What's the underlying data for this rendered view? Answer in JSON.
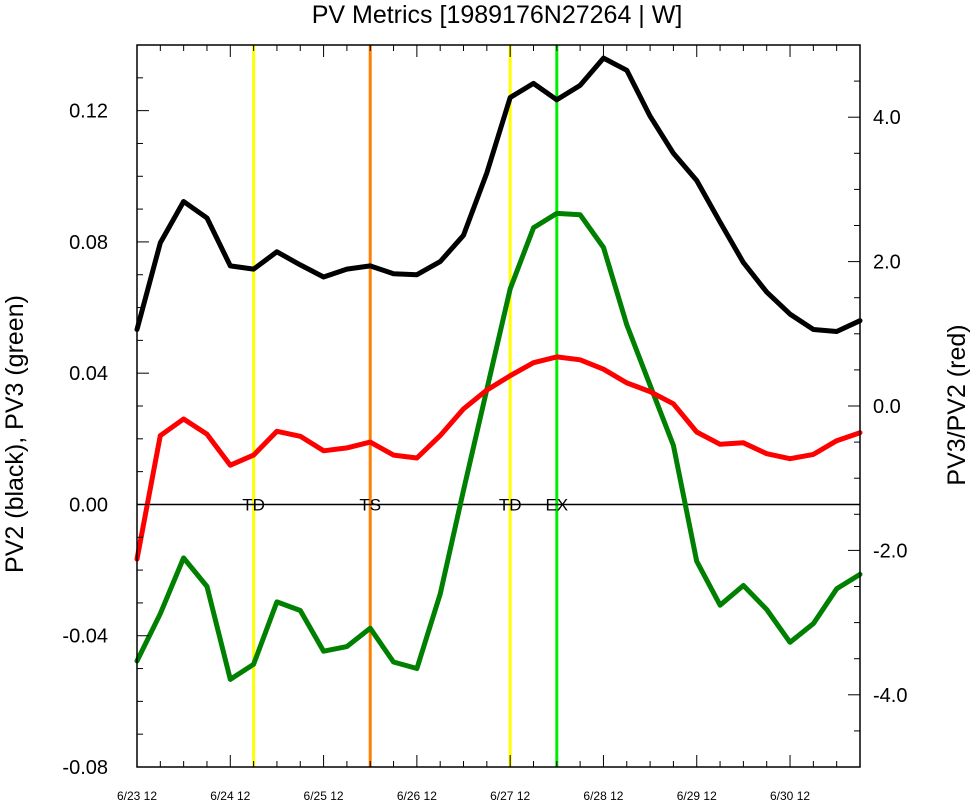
{
  "chart_data": {
    "type": "line",
    "title": "PV Metrics [1989176N27264 | W]",
    "ylabel_left": "PV2 (black), PV3 (green)",
    "ylabel_right": "PV3/PV2 (red)",
    "xlabel": "",
    "x_tick_labels": [
      "6/23 12",
      "6/24 12",
      "6/25 12",
      "6/26 12",
      "6/27 12",
      "6/28 12",
      "6/29 12",
      "6/30 12"
    ],
    "x_range_days": [
      0,
      7.75
    ],
    "ylim_left": [
      -0.08,
      0.14
    ],
    "y_ticks_left": [
      "-0.08",
      "-0.04",
      "0.00",
      "0.04",
      "0.08",
      "0.12"
    ],
    "y_tick_values_left": [
      -0.08,
      -0.04,
      0.0,
      0.04,
      0.08,
      0.12
    ],
    "ylim_right": [
      -5.0,
      5.0
    ],
    "y_ticks_right": [
      "-4.0",
      "-2.0",
      "0.0",
      "2.0",
      "4.0"
    ],
    "y_tick_values_right": [
      -4.0,
      -2.0,
      0.0,
      2.0,
      4.0
    ],
    "zero_line": 0.0,
    "x": [
      0,
      0.25,
      0.5,
      0.75,
      1.0,
      1.25,
      1.5,
      1.75,
      2.0,
      2.25,
      2.5,
      2.75,
      3.0,
      3.25,
      3.5,
      3.75,
      4.0,
      4.25,
      4.5,
      4.75,
      5.0,
      5.25,
      5.5,
      5.75,
      6.0,
      6.25,
      6.5,
      6.75,
      7.0,
      7.25,
      7.5,
      7.75
    ],
    "series": [
      {
        "name": "PV2",
        "axis": "left",
        "color": "#000000",
        "values": [
          0.0533,
          0.0797,
          0.0923,
          0.0873,
          0.0727,
          0.0717,
          0.077,
          0.073,
          0.0693,
          0.0717,
          0.0727,
          0.0703,
          0.07,
          0.074,
          0.082,
          0.101,
          0.124,
          0.1283,
          0.1233,
          0.1277,
          0.136,
          0.1323,
          0.1183,
          0.107,
          0.0987,
          0.086,
          0.0737,
          0.0647,
          0.058,
          0.0533,
          0.0527,
          0.056
        ]
      },
      {
        "name": "PV3",
        "axis": "left",
        "color": "#008000",
        "values": [
          -0.0477,
          -0.0333,
          -0.0163,
          -0.025,
          -0.0533,
          -0.0487,
          -0.0297,
          -0.0323,
          -0.0447,
          -0.0433,
          -0.0377,
          -0.048,
          -0.05,
          -0.0273,
          0.0043,
          0.035,
          0.0657,
          0.0843,
          0.0887,
          0.0883,
          0.0783,
          0.0547,
          0.0363,
          0.018,
          -0.0173,
          -0.0307,
          -0.0247,
          -0.032,
          -0.042,
          -0.0363,
          -0.0257,
          -0.0213
        ]
      },
      {
        "name": "PV3/PV2",
        "axis": "right",
        "color": "#ff0000",
        "values": [
          -2.12,
          -0.41,
          -0.18,
          -0.39,
          -0.82,
          -0.68,
          -0.35,
          -0.42,
          -0.62,
          -0.58,
          -0.5,
          -0.68,
          -0.72,
          -0.41,
          -0.04,
          0.22,
          0.42,
          0.6,
          0.68,
          0.64,
          0.51,
          0.32,
          0.2,
          0.03,
          -0.36,
          -0.53,
          -0.51,
          -0.66,
          -0.73,
          -0.67,
          -0.48,
          -0.37
        ]
      }
    ],
    "events": [
      {
        "label": "TD",
        "x": 1.25,
        "color": "#ffff00"
      },
      {
        "label": "TS",
        "x": 2.5,
        "color": "#ff8000"
      },
      {
        "label": "TD",
        "x": 4.0,
        "color": "#ffff00"
      },
      {
        "label": "EX",
        "x": 4.5,
        "color": "#00ee00"
      }
    ],
    "grid": false,
    "legend": "none"
  }
}
